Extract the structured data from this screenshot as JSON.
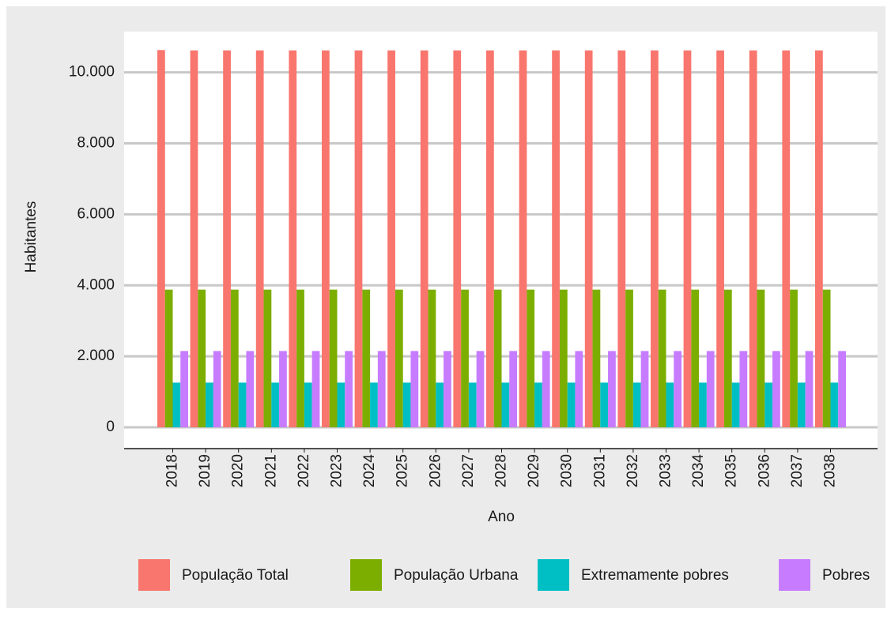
{
  "chart_data": {
    "type": "bar",
    "x_label": "Ano",
    "y_label": "Habitantes",
    "categories": [
      "2018",
      "2019",
      "2020",
      "2021",
      "2022",
      "2023",
      "2024",
      "2025",
      "2026",
      "2027",
      "2028",
      "2029",
      "2030",
      "2031",
      "2032",
      "2033",
      "2034",
      "2035",
      "2036",
      "2037",
      "2038"
    ],
    "series": [
      {
        "name": "População Total",
        "color": "#f8766d",
        "values": [
          10630,
          10620,
          10620,
          10620,
          10620,
          10620,
          10620,
          10620,
          10620,
          10620,
          10620,
          10620,
          10620,
          10620,
          10620,
          10620,
          10620,
          10620,
          10620,
          10620,
          10620
        ]
      },
      {
        "name": "População Urbana",
        "color": "#7cae00",
        "values": [
          3880,
          3880,
          3880,
          3880,
          3880,
          3880,
          3880,
          3880,
          3880,
          3880,
          3880,
          3880,
          3880,
          3880,
          3880,
          3880,
          3880,
          3880,
          3880,
          3880,
          3880
        ]
      },
      {
        "name": "Extremamente pobres",
        "color": "#00bfc4",
        "values": [
          1260,
          1260,
          1260,
          1260,
          1260,
          1260,
          1260,
          1260,
          1260,
          1260,
          1260,
          1260,
          1260,
          1260,
          1260,
          1260,
          1260,
          1260,
          1260,
          1260,
          1260
        ]
      },
      {
        "name": "Pobres",
        "color": "#c77cff",
        "values": [
          2150,
          2150,
          2150,
          2150,
          2150,
          2150,
          2150,
          2150,
          2150,
          2150,
          2150,
          2150,
          2150,
          2150,
          2150,
          2150,
          2150,
          2150,
          2150,
          2150,
          2150
        ]
      }
    ],
    "ylim": [
      -600,
      11150
    ],
    "yticks": [
      0,
      {
        "value": 2000,
        "label": "2.000"
      },
      {
        "value": 4000,
        "label": "4.000"
      },
      {
        "value": 6000,
        "label": "6.000"
      },
      {
        "value": 8000,
        "label": "8.000"
      },
      {
        "value": 10000,
        "label": "10.000"
      }
    ],
    "grid": true,
    "legend": "bottom"
  }
}
